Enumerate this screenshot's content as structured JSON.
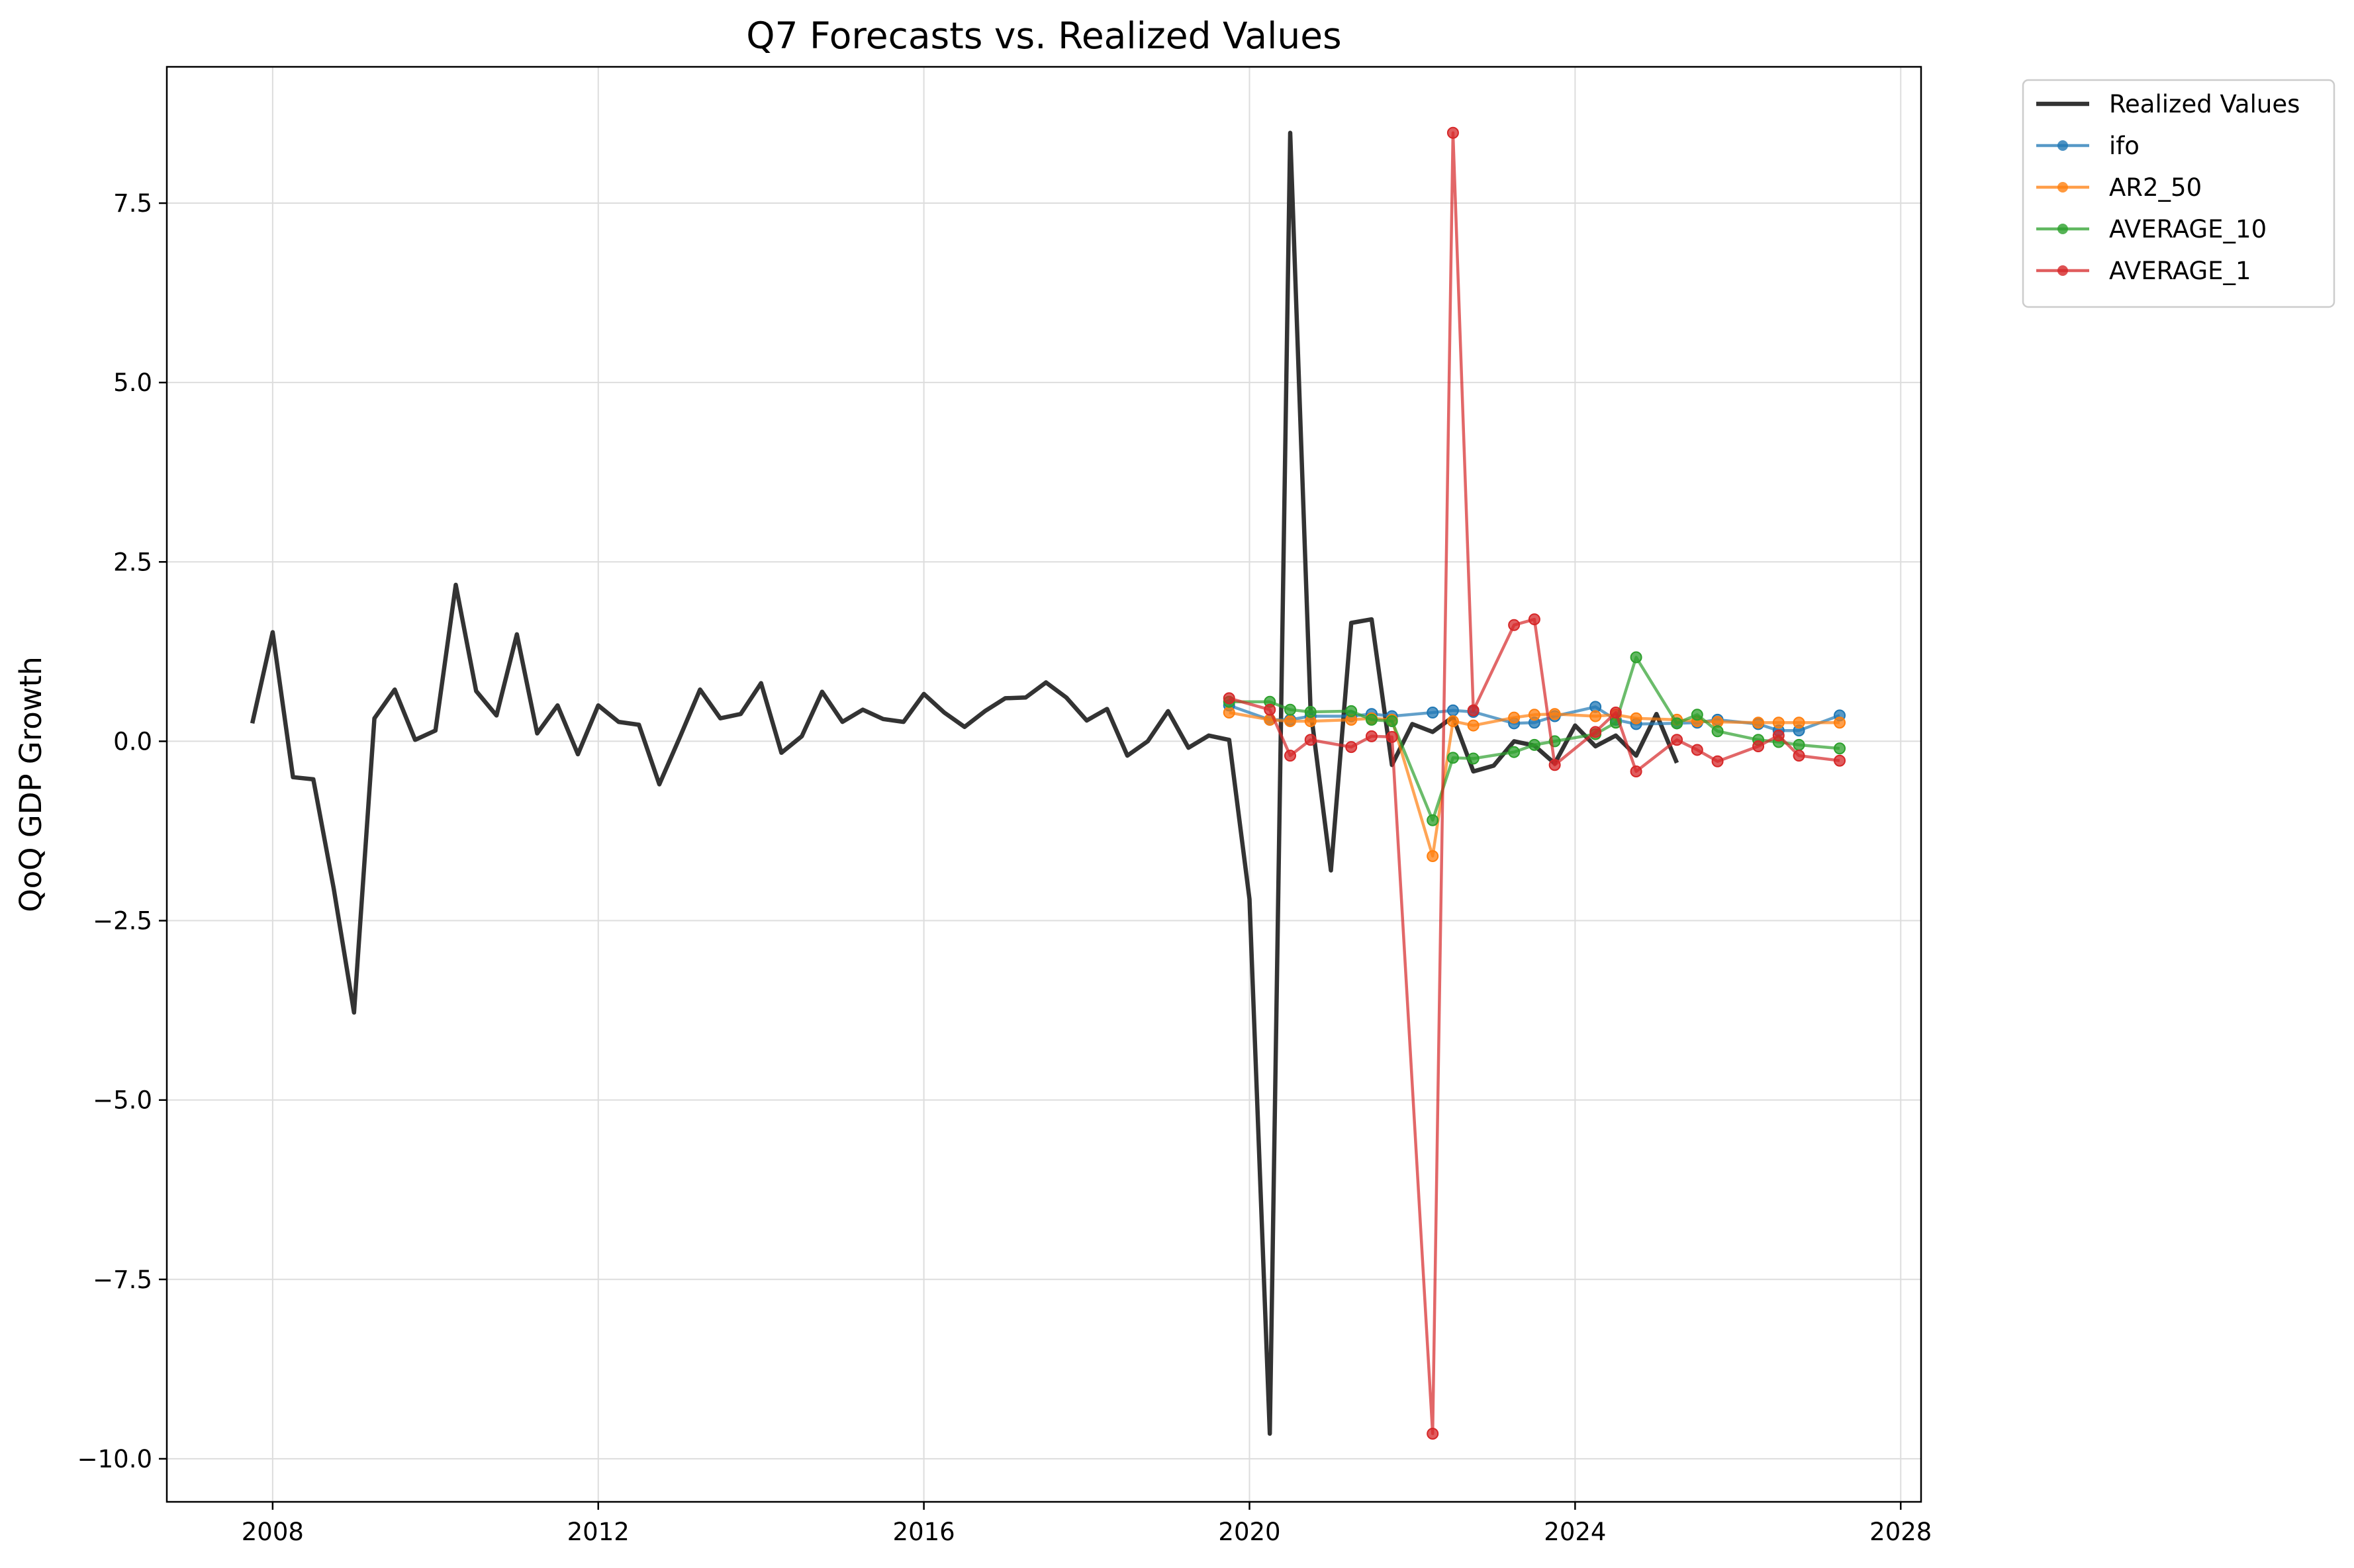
{
  "chart_data": {
    "type": "line",
    "title": "Q7 Forecasts vs. Realized Values",
    "xlabel": "",
    "ylabel": "QoQ GDP Growth",
    "xlim": [
      2006.7,
      2028.25
    ],
    "ylim": [
      -10.6,
      9.4
    ],
    "xticks": [
      2008,
      2012,
      2016,
      2020,
      2024,
      2028
    ],
    "yticks": [
      7.5,
      5.0,
      2.5,
      0.0,
      -2.5,
      -5.0,
      -7.5,
      -10.0
    ],
    "ytick_labels": [
      "7.5",
      "5.0",
      "2.5",
      "0.0",
      "−2.5",
      "−5.0",
      "−7.5",
      "−10.0"
    ],
    "grid": true,
    "legend_position": "outside top-right",
    "series": [
      {
        "name": "Realized Values",
        "color": "#333333",
        "markers": false,
        "x": [
          2007.75,
          2008.0,
          2008.25,
          2008.5,
          2008.75,
          2009.0,
          2009.25,
          2009.5,
          2009.75,
          2010.0,
          2010.25,
          2010.5,
          2010.75,
          2011.0,
          2011.25,
          2011.5,
          2011.75,
          2012.0,
          2012.25,
          2012.5,
          2012.75,
          2013.0,
          2013.25,
          2013.5,
          2013.75,
          2014.0,
          2014.25,
          2014.5,
          2014.75,
          2015.0,
          2015.25,
          2015.5,
          2015.75,
          2016.0,
          2016.25,
          2016.5,
          2016.75,
          2017.0,
          2017.25,
          2017.5,
          2017.75,
          2018.0,
          2018.25,
          2018.5,
          2018.75,
          2019.0,
          2019.25,
          2019.5,
          2019.75,
          2020.0,
          2020.25,
          2020.5,
          2020.75,
          2021.0,
          2021.25,
          2021.5,
          2021.75,
          2022.0,
          2022.25,
          2022.5,
          2022.75,
          2023.0,
          2023.25,
          2023.5,
          2023.75,
          2024.0,
          2024.25,
          2024.5,
          2024.75,
          2025.0,
          2025.25
        ],
        "y": [
          0.25,
          1.52,
          -0.5,
          -0.53,
          -2.05,
          -3.78,
          0.32,
          0.72,
          0.02,
          0.15,
          2.18,
          0.7,
          0.36,
          1.49,
          0.11,
          0.5,
          -0.18,
          0.5,
          0.27,
          0.23,
          -0.6,
          0.05,
          0.72,
          0.32,
          0.38,
          0.81,
          -0.16,
          0.07,
          0.69,
          0.27,
          0.44,
          0.31,
          0.27,
          0.66,
          0.4,
          0.2,
          0.42,
          0.6,
          0.61,
          0.82,
          0.61,
          0.29,
          0.45,
          -0.2,
          0.0,
          0.42,
          -0.09,
          0.08,
          0.02,
          -2.2,
          -9.65,
          8.48,
          0.45,
          -1.8,
          1.65,
          1.7,
          -0.33,
          0.24,
          0.13,
          0.34,
          -0.42,
          -0.34,
          0.0,
          -0.06,
          -0.31,
          0.22,
          -0.07,
          0.08,
          -0.2,
          0.38,
          -0.3
        ]
      },
      {
        "name": "ifo",
        "color": "#1f77b4",
        "markers": true,
        "x": [
          2019.75,
          2020.25,
          2020.5,
          2020.75,
          2021.25,
          2021.5,
          2021.75,
          2022.25,
          2022.5,
          2022.75,
          2023.25,
          2023.5,
          2023.75,
          2024.25,
          2024.5,
          2024.75,
          2025.25,
          2025.5,
          2025.75,
          2026.25,
          2026.5,
          2026.75,
          2027.25
        ],
        "y": [
          0.5,
          0.3,
          0.3,
          0.35,
          0.35,
          0.38,
          0.35,
          0.4,
          0.43,
          0.41,
          0.25,
          0.26,
          0.35,
          0.48,
          0.3,
          0.24,
          0.25,
          0.26,
          0.3,
          0.24,
          0.15,
          0.15,
          0.36
        ]
      },
      {
        "name": "AR2_50",
        "color": "#ff7f0e",
        "markers": true,
        "x": [
          2019.75,
          2020.25,
          2020.5,
          2020.75,
          2021.25,
          2021.5,
          2021.75,
          2022.25,
          2022.5,
          2022.75,
          2023.25,
          2023.5,
          2023.75,
          2024.25,
          2024.5,
          2024.75,
          2025.25,
          2025.5,
          2025.75,
          2026.25,
          2026.5,
          2026.75,
          2027.25
        ],
        "y": [
          0.4,
          0.3,
          0.28,
          0.28,
          0.3,
          0.32,
          0.3,
          -1.6,
          0.28,
          0.22,
          0.33,
          0.37,
          0.38,
          0.35,
          0.37,
          0.32,
          0.3,
          0.28,
          0.27,
          0.26,
          0.26,
          0.26,
          0.26
        ]
      },
      {
        "name": "AVERAGE_10",
        "color": "#2ca02c",
        "markers": true,
        "x": [
          2019.75,
          2020.25,
          2020.5,
          2020.75,
          2021.25,
          2021.5,
          2021.75,
          2022.25,
          2022.5,
          2022.75,
          2023.25,
          2023.5,
          2023.75,
          2024.25,
          2024.5,
          2024.75,
          2025.25,
          2025.5,
          2025.75,
          2026.25,
          2026.5,
          2026.75,
          2027.25
        ],
        "y": [
          0.55,
          0.55,
          0.44,
          0.41,
          0.42,
          0.3,
          0.28,
          -1.1,
          -0.23,
          -0.24,
          -0.15,
          -0.05,
          0.0,
          0.1,
          0.26,
          1.17,
          0.25,
          0.37,
          0.14,
          0.02,
          -0.01,
          -0.05,
          -0.1
        ]
      },
      {
        "name": "AVERAGE_1",
        "color": "#d62728",
        "markers": true,
        "x": [
          2019.75,
          2020.25,
          2020.5,
          2020.75,
          2021.25,
          2021.5,
          2021.75,
          2022.25,
          2022.5,
          2022.75,
          2023.25,
          2023.5,
          2023.75,
          2024.25,
          2024.5,
          2024.75,
          2025.25,
          2025.5,
          2025.75,
          2026.25,
          2026.5,
          2026.75,
          2027.25
        ],
        "y": [
          0.6,
          0.44,
          -0.2,
          0.02,
          -0.08,
          0.07,
          0.06,
          -9.65,
          8.48,
          0.43,
          1.62,
          1.7,
          -0.33,
          0.13,
          0.4,
          -0.42,
          0.02,
          -0.12,
          -0.28,
          -0.07,
          0.08,
          -0.2,
          -0.27
        ]
      }
    ]
  }
}
